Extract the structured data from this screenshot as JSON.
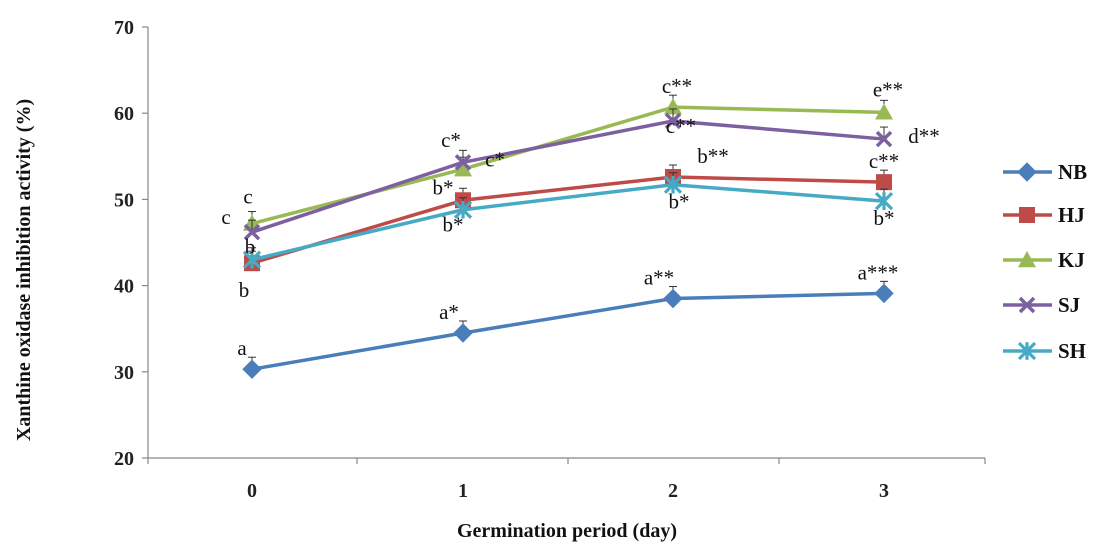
{
  "chart_data": {
    "type": "line",
    "title": "",
    "xlabel": "Germination period (day)",
    "ylabel": "Xanthine oxidase inhibition activity (%)",
    "ylim": [
      20,
      70
    ],
    "yticks": [
      "20",
      "30",
      "40",
      "50",
      "60",
      "70"
    ],
    "x": [
      "0",
      "1",
      "2",
      "3"
    ],
    "legend_position": "right",
    "grid": false,
    "series": [
      {
        "name": "NB",
        "color": "#4a7ebb",
        "marker": "diamond",
        "values": [
          30.3,
          34.5,
          38.5,
          39.1
        ],
        "labels": [
          "a",
          "a*",
          "a**",
          "a***"
        ]
      },
      {
        "name": "HJ",
        "color": "#be4b48",
        "marker": "square",
        "values": [
          42.6,
          49.9,
          52.6,
          52.0
        ],
        "labels": [
          "b",
          "b*",
          "b**",
          "c**"
        ]
      },
      {
        "name": "KJ",
        "color": "#98b954",
        "marker": "triangle",
        "values": [
          47.2,
          53.5,
          60.7,
          60.1
        ],
        "labels": [
          "c",
          "c*",
          "c**",
          "e**"
        ]
      },
      {
        "name": "SJ",
        "color": "#7d60a0",
        "marker": "x",
        "values": [
          46.2,
          54.3,
          59.1,
          57.0
        ],
        "labels": [
          "c",
          "c*",
          "c**",
          "d**"
        ]
      },
      {
        "name": "SH",
        "color": "#46aac5",
        "marker": "star",
        "values": [
          43.0,
          48.8,
          51.7,
          49.8
        ],
        "labels": [
          "b",
          "b*",
          "b*",
          "b*"
        ]
      }
    ]
  }
}
